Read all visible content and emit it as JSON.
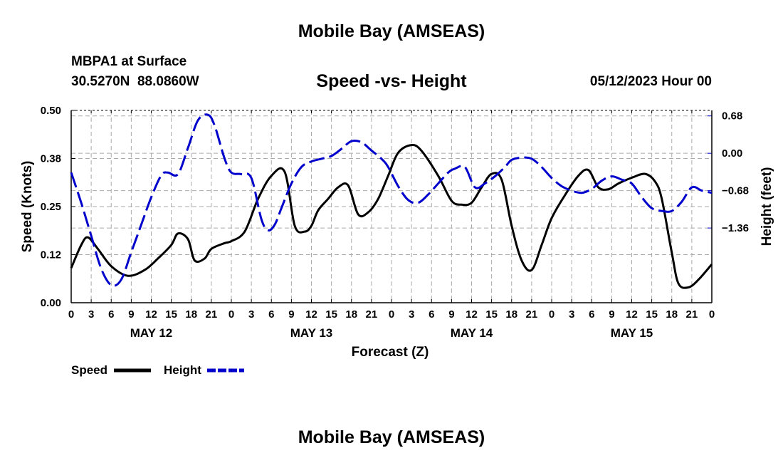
{
  "page": {
    "title_top": "Mobile Bay (AMSEAS)",
    "title_bottom": "Mobile Bay (AMSEAS)",
    "site_name": "MBPA1 at Surface",
    "site_coords": "30.5270N  88.0860W",
    "chart_title": "Speed -vs- Height",
    "date_label": "05/12/2023 Hour 00"
  },
  "colors": {
    "speed": "#000000",
    "height": "#0000cc",
    "grid": "#aaaaaa"
  },
  "chart_data": {
    "type": "line",
    "title": "Speed -vs- Height",
    "xlabel": "Forecast (Z)",
    "ylabel_left": "Speed (Knots)",
    "ylabel_right": "Height (feet)",
    "x_range_hours": [
      0,
      96
    ],
    "x_tick_step_hours": 3,
    "x_tick_labels": [
      "0",
      "3",
      "6",
      "9",
      "12",
      "15",
      "18",
      "21",
      "0",
      "3",
      "6",
      "9",
      "12",
      "15",
      "18",
      "21",
      "0",
      "3",
      "6",
      "9",
      "12",
      "15",
      "18",
      "21",
      "0",
      "3",
      "6",
      "9",
      "12",
      "15",
      "18",
      "21",
      "0"
    ],
    "day_labels": [
      {
        "label": "MAY 12",
        "hour": 12
      },
      {
        "label": "MAY 13",
        "hour": 36
      },
      {
        "label": "MAY 14",
        "hour": 60
      },
      {
        "label": "MAY 15",
        "hour": 84
      }
    ],
    "ylim_left": [
      0,
      0.5
    ],
    "yticks_left": [
      "0.00",
      "0.12",
      "0.25",
      "0.38",
      "0.50"
    ],
    "ylim_right": [
      -2.72,
      0.78
    ],
    "yticks_right": [
      {
        "label": "0.68",
        "value": 0.68
      },
      {
        "label": "0.00",
        "value": 0.0
      },
      {
        "label": "−0.68",
        "value": -0.68
      },
      {
        "label": "−1.36",
        "value": -1.36
      }
    ],
    "grid": true,
    "legend": {
      "placement": "bottom-left",
      "entries": [
        "Speed",
        "Height"
      ]
    },
    "series": [
      {
        "name": "Speed",
        "axis": "left",
        "x": [
          0,
          1.5,
          2.5,
          4,
          6,
          8.5,
          11,
          13,
          15,
          16,
          17.5,
          18.5,
          20,
          21,
          23,
          24,
          26,
          28,
          30,
          32,
          33.5,
          35,
          36,
          37,
          38.5,
          40,
          41.5,
          43,
          44.5,
          46,
          47.5,
          49,
          51,
          52.5,
          55,
          57,
          58.5,
          60,
          61.5,
          63,
          64.5,
          66,
          67.5,
          69,
          70.5,
          72,
          74,
          76,
          77.5,
          79,
          80.5,
          82,
          84,
          86,
          87.5,
          88.5,
          90,
          91,
          92.5,
          94,
          96
        ],
        "y": [
          0.09,
          0.15,
          0.17,
          0.14,
          0.095,
          0.07,
          0.085,
          0.115,
          0.15,
          0.18,
          0.165,
          0.11,
          0.115,
          0.14,
          0.155,
          0.16,
          0.185,
          0.27,
          0.33,
          0.34,
          0.2,
          0.185,
          0.2,
          0.24,
          0.27,
          0.3,
          0.305,
          0.23,
          0.235,
          0.27,
          0.33,
          0.39,
          0.41,
          0.395,
          0.33,
          0.265,
          0.255,
          0.26,
          0.3,
          0.335,
          0.32,
          0.2,
          0.11,
          0.085,
          0.15,
          0.22,
          0.28,
          0.33,
          0.345,
          0.3,
          0.295,
          0.31,
          0.325,
          0.335,
          0.315,
          0.27,
          0.13,
          0.05,
          0.04,
          0.06,
          0.1
        ]
      },
      {
        "name": "Height",
        "axis": "right",
        "x": [
          0,
          1.5,
          3,
          4.5,
          6,
          7.5,
          9,
          10.5,
          12,
          13.5,
          14.5,
          16,
          17.5,
          19,
          20.5,
          21.5,
          23,
          24,
          25.5,
          27,
          28.5,
          29.5,
          30.5,
          31.5,
          33,
          34.5,
          36,
          37.5,
          39,
          40.5,
          42,
          43.5,
          45,
          46.5,
          47.5,
          49,
          50.5,
          52,
          53.5,
          55,
          56.5,
          57.5,
          59,
          60.5,
          62,
          63.5,
          65,
          66,
          67.5,
          69,
          70.5,
          72,
          73.5,
          75,
          76.5,
          78,
          79.5,
          81,
          82.5,
          84,
          85.5,
          87,
          88.5,
          90,
          91.5,
          93,
          94.5,
          96
        ],
        "y": [
          -0.35,
          -0.9,
          -1.5,
          -2.1,
          -2.4,
          -2.3,
          -1.8,
          -1.3,
          -0.8,
          -0.4,
          -0.35,
          -0.38,
          0.1,
          0.6,
          0.7,
          0.5,
          -0.1,
          -0.35,
          -0.38,
          -0.45,
          -1.2,
          -1.4,
          -1.3,
          -1.0,
          -0.55,
          -0.25,
          -0.15,
          -0.1,
          -0.05,
          0.08,
          0.22,
          0.2,
          0.05,
          -0.1,
          -0.25,
          -0.6,
          -0.85,
          -0.9,
          -0.75,
          -0.55,
          -0.35,
          -0.28,
          -0.25,
          -0.62,
          -0.55,
          -0.42,
          -0.25,
          -0.12,
          -0.08,
          -0.1,
          -0.25,
          -0.45,
          -0.6,
          -0.68,
          -0.72,
          -0.65,
          -0.5,
          -0.42,
          -0.48,
          -0.55,
          -0.8,
          -1.0,
          -1.05,
          -1.05,
          -0.88,
          -0.62,
          -0.68,
          -0.72
        ]
      }
    ]
  }
}
